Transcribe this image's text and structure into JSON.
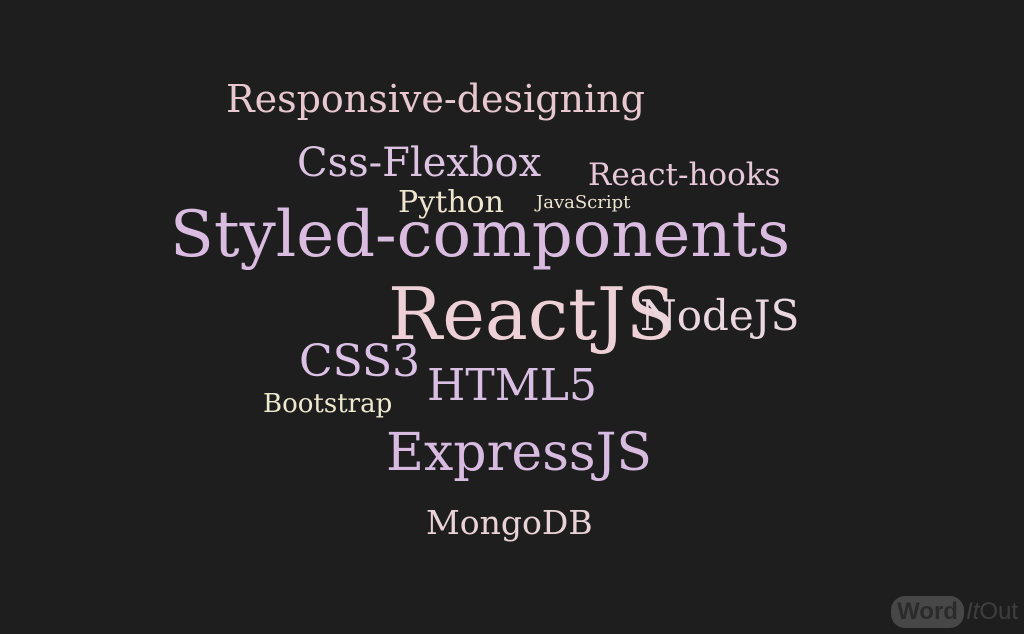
{
  "words": {
    "responsive_designing": "Responsive-designing",
    "css_flexbox": "Css-Flexbox",
    "react_hooks": "React-hooks",
    "python": "Python",
    "javascript": "JavaScript",
    "styled_components": "Styled-components",
    "reactjs": "ReactJS",
    "nodejs": "NodeJS",
    "css3": "CSS3",
    "html5": "HTML5",
    "bootstrap": "Bootstrap",
    "expressjs": "ExpressJS",
    "mongodb": "MongoDB"
  },
  "logo": {
    "word": "Word",
    "it": "It",
    "out": "Out"
  },
  "colors": {
    "background": "#1f1e1f",
    "pink": "#e7c8cf",
    "lilac": "#d9bce0",
    "cream": "#eee5cf"
  }
}
